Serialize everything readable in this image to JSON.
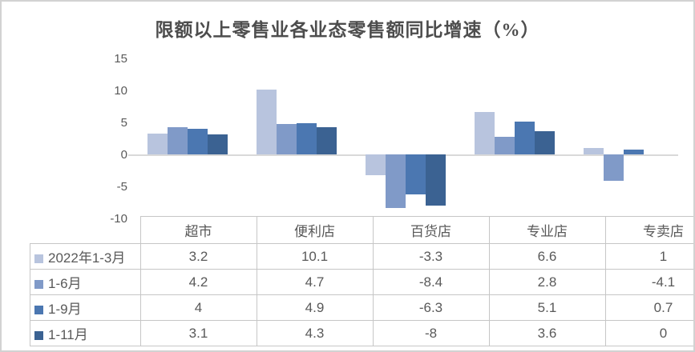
{
  "chart_data": {
    "type": "bar",
    "title": "限额以上零售业各业态零售额同比增速（%）",
    "categories": [
      "超市",
      "便利店",
      "百货店",
      "专业店",
      "专卖店"
    ],
    "series": [
      {
        "name": "2022年1-3月",
        "color": "#b8c4de",
        "values": [
          3.2,
          10.1,
          -3.3,
          6.6,
          1
        ]
      },
      {
        "name": "1-6月",
        "color": "#809ac8",
        "values": [
          4.2,
          4.7,
          -8.4,
          2.8,
          -4.1
        ]
      },
      {
        "name": "1-9月",
        "color": "#4b77b1",
        "values": [
          4,
          4.9,
          -6.3,
          5.1,
          0.7
        ]
      },
      {
        "name": "1-11月",
        "color": "#3b6292",
        "values": [
          3.1,
          4.3,
          -8,
          3.6,
          0
        ]
      }
    ],
    "yticks": [
      15,
      10,
      5,
      0,
      -5,
      -10
    ],
    "ylim": [
      -10,
      15
    ],
    "xlabel": "",
    "ylabel": "",
    "grid": false,
    "legend_position": "table-row-headers",
    "axis_color": "#d9d9d9",
    "data_table_shown": true
  }
}
